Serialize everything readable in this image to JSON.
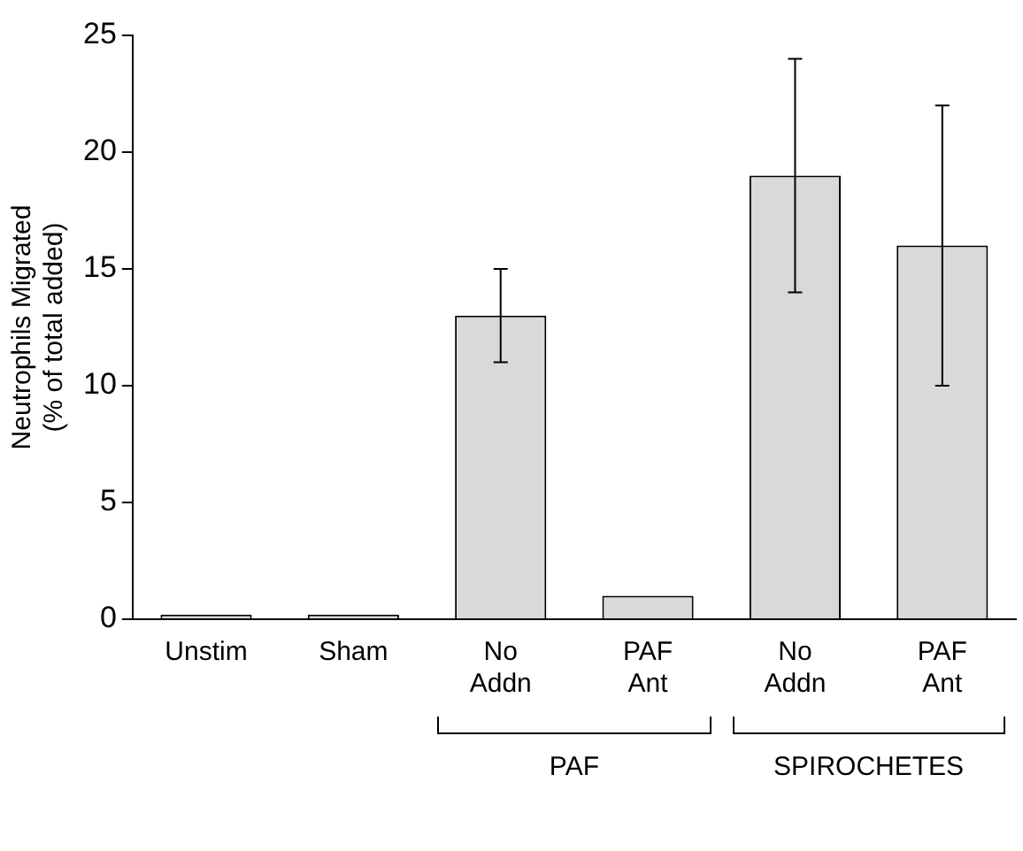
{
  "chart_data": {
    "type": "bar",
    "ylabel": "Neutrophils Migrated\n(% of total added)",
    "categories": [
      "Unstim",
      "Sham",
      "No Addn",
      "PAF Ant",
      "No Addn",
      "PAF Ant"
    ],
    "values": [
      0.2,
      0.2,
      13,
      1,
      19,
      16
    ],
    "errors": [
      null,
      null,
      2,
      null,
      5,
      6
    ],
    "color": "#d9d9d9",
    "ylim": [
      0,
      25
    ],
    "yticks": [
      0,
      5,
      10,
      15,
      20,
      25
    ],
    "grid": false,
    "legend": false,
    "annotations": [
      "PAF",
      "SPIROCHETES"
    ]
  }
}
